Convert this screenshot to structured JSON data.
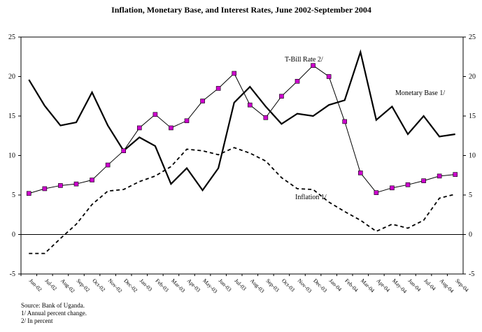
{
  "chart_data": {
    "type": "line",
    "title": "Inflation, Monetary Base, and Interest Rates, June 2002-September 2004",
    "categories": [
      "Jun-02",
      "Jul-02",
      "Aug-02",
      "Sep-02",
      "Oct-02",
      "Nov-02",
      "Dec-02",
      "Jan-03",
      "Feb-03",
      "Mar-03",
      "Apr-03",
      "May-03",
      "Jun-03",
      "Jul-03",
      "Aug-03",
      "Sep-03",
      "Oct-03",
      "Nov-03",
      "Dec-03",
      "Jan-04",
      "Feb-04",
      "Mar-04",
      "Apr-04",
      "May-04",
      "Jun-04",
      "Jul-04",
      "Aug-04",
      "Sep-04"
    ],
    "series": [
      {
        "name": "Monetary Base 1/",
        "color": "#000000",
        "style": "thick",
        "values": [
          19.6,
          16.3,
          13.8,
          14.2,
          18.0,
          13.8,
          10.6,
          12.3,
          11.2,
          6.4,
          8.4,
          5.6,
          8.4,
          16.7,
          18.7,
          16.2,
          14.0,
          15.3,
          15.0,
          16.4,
          17.0,
          23.1,
          14.5,
          16.2,
          12.7,
          15.0,
          12.4,
          12.7
        ]
      },
      {
        "name": "T-Bill Rate 2/",
        "color": "#000000",
        "marker_color": "#cc00cc",
        "style": "marker",
        "values": [
          5.2,
          5.8,
          6.2,
          6.4,
          6.9,
          8.8,
          10.6,
          13.5,
          15.2,
          13.5,
          14.4,
          16.9,
          18.5,
          20.4,
          16.4,
          14.8,
          17.5,
          19.4,
          21.4,
          20.0,
          14.3,
          7.8,
          5.3,
          5.9,
          6.3,
          6.8,
          7.4,
          7.6
        ]
      },
      {
        "name": "Inflation 1/",
        "color": "#000000",
        "style": "dashed",
        "values": [
          -2.4,
          -2.4,
          -0.5,
          1.3,
          3.8,
          5.5,
          5.7,
          6.7,
          7.4,
          8.6,
          10.8,
          10.6,
          10.1,
          11.0,
          10.3,
          9.3,
          7.2,
          5.8,
          5.7,
          4.1,
          2.9,
          1.8,
          0.4,
          1.3,
          0.8,
          1.8,
          4.6,
          5.1
        ]
      }
    ],
    "ylim": [
      -5,
      25
    ],
    "yticks": [
      -5,
      0,
      5,
      10,
      15,
      20,
      25
    ],
    "y2lim": [
      -5,
      25
    ],
    "y2ticks": [
      -5,
      0,
      5,
      10,
      15,
      20,
      25
    ],
    "notes": [
      "Source: Bank of Uganda.",
      "1/ Annual percent change.",
      "2/ In percent"
    ]
  }
}
